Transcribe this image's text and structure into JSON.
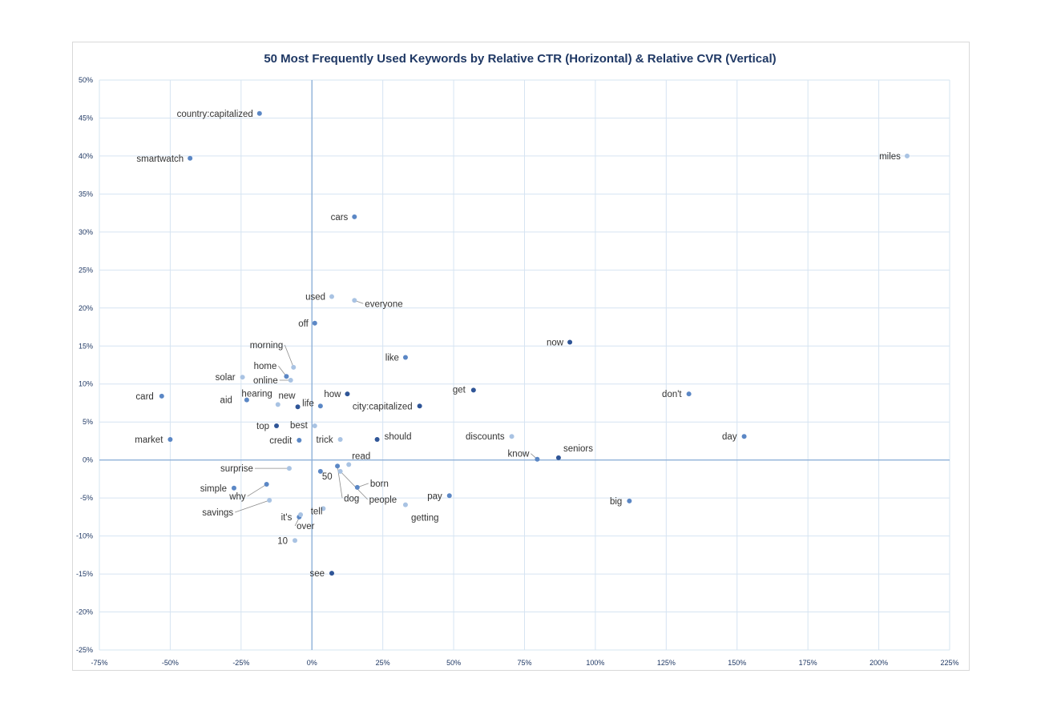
{
  "chart_data": {
    "type": "scatter",
    "title": "50 Most Frequently Used Keywords by Relative CTR (Horizontal) & Relative CVR (Vertical)",
    "xlabel": "",
    "ylabel": "",
    "xlim": [
      -75,
      225
    ],
    "ylim": [
      -25,
      50
    ],
    "x_ticks": [
      -75,
      -50,
      -25,
      0,
      25,
      50,
      75,
      100,
      125,
      150,
      175,
      200,
      225
    ],
    "y_ticks": [
      -25,
      -20,
      -15,
      -10,
      -5,
      0,
      5,
      10,
      15,
      20,
      25,
      30,
      35,
      40,
      45,
      50
    ],
    "x_tick_labels": [
      "-75%",
      "-50%",
      "-25%",
      "0%",
      "25%",
      "50%",
      "75%",
      "100%",
      "125%",
      "150%",
      "175%",
      "200%",
      "225%"
    ],
    "y_tick_labels": [
      "-25%",
      "-20%",
      "-15%",
      "-10%",
      "-5%",
      "0%",
      "5%",
      "10%",
      "15%",
      "20%",
      "25%",
      "30%",
      "35%",
      "40%",
      "45%",
      "50%"
    ],
    "grid": true,
    "legend": "none",
    "point_colors": {
      "dark": "#2f5597",
      "mid": "#5b87c5",
      "light": "#a9c3e3"
    },
    "points": [
      {
        "label": "country:capitalized",
        "x": -18.5,
        "y": 45.6,
        "shade": "mid"
      },
      {
        "label": "smartwatch",
        "x": -43,
        "y": 39.7,
        "shade": "mid"
      },
      {
        "label": "miles",
        "x": 210,
        "y": 40,
        "shade": "light"
      },
      {
        "label": "cars",
        "x": 15,
        "y": 32,
        "shade": "mid"
      },
      {
        "label": "used",
        "x": 7,
        "y": 21.5,
        "shade": "light"
      },
      {
        "label": "everyone",
        "x": 15,
        "y": 21,
        "shade": "light"
      },
      {
        "label": "off",
        "x": 1,
        "y": 18,
        "shade": "mid"
      },
      {
        "label": "now",
        "x": 91,
        "y": 15.5,
        "shade": "dark"
      },
      {
        "label": "like",
        "x": 33,
        "y": 13.5,
        "shade": "mid"
      },
      {
        "label": "morning",
        "x": -6.5,
        "y": 12.2,
        "shade": "light"
      },
      {
        "label": "home",
        "x": -9,
        "y": 11,
        "shade": "mid"
      },
      {
        "label": "solar",
        "x": -24.5,
        "y": 10.9,
        "shade": "light"
      },
      {
        "label": "online",
        "x": -7.5,
        "y": 10.5,
        "shade": "light"
      },
      {
        "label": "card",
        "x": -53,
        "y": 8.4,
        "shade": "mid"
      },
      {
        "label": "get",
        "x": 57,
        "y": 9.2,
        "shade": "dark"
      },
      {
        "label": "don't",
        "x": 133,
        "y": 8.7,
        "shade": "mid"
      },
      {
        "label": "how",
        "x": 12.5,
        "y": 8.7,
        "shade": "dark"
      },
      {
        "label": "hearing",
        "x": -12,
        "y": 7.3,
        "shade": "light"
      },
      {
        "label": "new",
        "x": -5,
        "y": 7,
        "shade": "dark"
      },
      {
        "label": "aid",
        "x": -23,
        "y": 7.9,
        "shade": "mid"
      },
      {
        "label": "life",
        "x": 3,
        "y": 7.1,
        "shade": "mid"
      },
      {
        "label": "city:capitalized",
        "x": 38,
        "y": 7.1,
        "shade": "dark"
      },
      {
        "label": "top",
        "x": -12.5,
        "y": 4.5,
        "shade": "dark"
      },
      {
        "label": "best",
        "x": 1,
        "y": 4.5,
        "shade": "light"
      },
      {
        "label": "market",
        "x": -50,
        "y": 2.7,
        "shade": "mid"
      },
      {
        "label": "credit",
        "x": -4.5,
        "y": 2.6,
        "shade": "mid"
      },
      {
        "label": "trick",
        "x": 10,
        "y": 2.7,
        "shade": "light"
      },
      {
        "label": "should",
        "x": 23,
        "y": 2.7,
        "shade": "dark"
      },
      {
        "label": "discounts",
        "x": 70.5,
        "y": 3.1,
        "shade": "light"
      },
      {
        "label": "day",
        "x": 152.5,
        "y": 3.1,
        "shade": "mid"
      },
      {
        "label": "know",
        "x": 79.5,
        "y": 0.1,
        "shade": "mid"
      },
      {
        "label": "seniors",
        "x": 87,
        "y": 0.3,
        "shade": "dark"
      },
      {
        "label": "read",
        "x": 13,
        "y": -0.6,
        "shade": "light"
      },
      {
        "label": "surprise",
        "x": -8,
        "y": -1.1,
        "shade": "light"
      },
      {
        "label": "50",
        "x": 3,
        "y": -1.5,
        "shade": "mid"
      },
      {
        "label": "born",
        "x": 16,
        "y": -3.6,
        "shade": "mid"
      },
      {
        "label": "simple",
        "x": -27.5,
        "y": -3.7,
        "shade": "mid"
      },
      {
        "label": "why",
        "x": -16,
        "y": -3.2,
        "shade": "mid"
      },
      {
        "label": "dog",
        "x": 9,
        "y": -0.8,
        "shade": "mid"
      },
      {
        "label": "people",
        "x": 10,
        "y": -1.5,
        "shade": "light"
      },
      {
        "label": "pay",
        "x": 48.5,
        "y": -4.7,
        "shade": "mid"
      },
      {
        "label": "big",
        "x": 112,
        "y": -5.4,
        "shade": "mid"
      },
      {
        "label": "savings",
        "x": -15,
        "y": -5.3,
        "shade": "light"
      },
      {
        "label": "getting",
        "x": 33,
        "y": -5.9,
        "shade": "light"
      },
      {
        "label": "tell",
        "x": 4,
        "y": -6.4,
        "shade": "light"
      },
      {
        "label": "it's",
        "x": -4.5,
        "y": -7.5,
        "shade": "mid"
      },
      {
        "label": "over",
        "x": -4,
        "y": -7.2,
        "shade": "light"
      },
      {
        "label": "10",
        "x": -6,
        "y": -10.6,
        "shade": "light"
      },
      {
        "label": "see",
        "x": 7,
        "y": -14.9,
        "shade": "dark"
      }
    ]
  }
}
